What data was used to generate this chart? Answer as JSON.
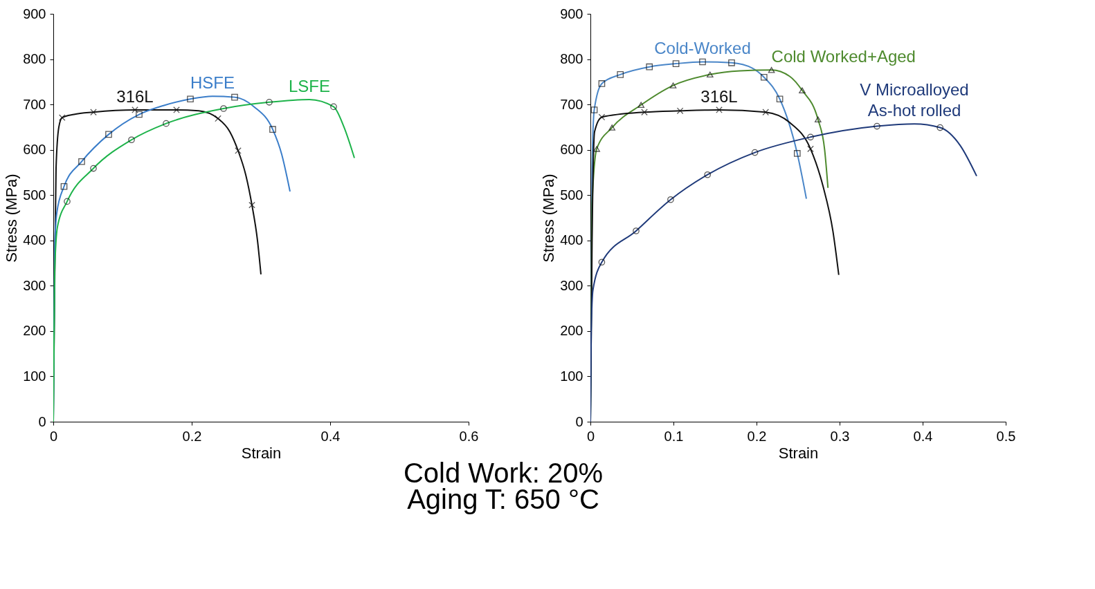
{
  "chart_data": [
    {
      "type": "line",
      "xlabel": "Strain",
      "ylabel": "Stress (MPa)",
      "xlim": [
        0,
        0.6
      ],
      "xticks": [
        0,
        0.2,
        0.4,
        0.6
      ],
      "ylim": [
        0,
        900
      ],
      "yticks": [
        0,
        100,
        200,
        300,
        400,
        500,
        600,
        700,
        800,
        900
      ],
      "grid": false,
      "series": [
        {
          "name": "316L",
          "color": "#111111",
          "x": [
            0,
            0.002,
            0.004,
            0.008,
            0.0128,
            0.03,
            0.058,
            0.118,
            0.178,
            0.21,
            0.238,
            0.255,
            0.267,
            0.278,
            0.287,
            0.295,
            0.3
          ],
          "values": [
            0,
            300,
            560,
            650,
            671,
            678,
            683,
            688,
            688,
            686,
            669,
            640,
            598,
            545,
            478,
            400,
            325
          ]
        },
        {
          "name": "HSFE",
          "color": "#3a7dc9",
          "x": [
            0,
            0.002,
            0.005,
            0.0155,
            0.041,
            0.08,
            0.124,
            0.16,
            0.198,
            0.23,
            0.262,
            0.29,
            0.317,
            0.33,
            0.342
          ],
          "values": [
            0,
            380,
            460,
            519,
            574,
            634,
            678,
            698,
            712,
            718,
            716,
            695,
            645,
            590,
            508
          ]
        },
        {
          "name": "LSFE",
          "color": "#1db34a",
          "x": [
            0,
            0.002,
            0.006,
            0.02,
            0.058,
            0.113,
            0.163,
            0.246,
            0.312,
            0.37,
            0.405,
            0.42,
            0.435
          ],
          "values": [
            0,
            330,
            430,
            486,
            559,
            622,
            658,
            691,
            705,
            711,
            695,
            650,
            582
          ]
        },
        {
          "type": "scatter",
          "color": "#111111",
          "marker": "cross",
          "x": [
            0.0128,
            0.058,
            0.118,
            0.178,
            0.238,
            0.267,
            0.287
          ],
          "values": [
            671,
            683,
            688,
            688,
            669,
            598,
            478
          ]
        },
        {
          "type": "scatter",
          "color": "#111111",
          "marker": "square",
          "x": [
            0.0155,
            0.041,
            0.08,
            0.124,
            0.198,
            0.262,
            0.317
          ],
          "values": [
            519,
            574,
            634,
            678,
            712,
            716,
            645
          ]
        },
        {
          "type": "scatter",
          "color": "#111111",
          "marker": "circle",
          "x": [
            0.02,
            0.058,
            0.113,
            0.163,
            0.246,
            0.312,
            0.405
          ],
          "values": [
            486,
            559,
            622,
            658,
            691,
            705,
            695
          ]
        }
      ]
    },
    {
      "type": "line",
      "xlabel": "Strain",
      "ylabel": "Stress (MPa)",
      "xlim": [
        0,
        0.5
      ],
      "xticks": [
        0,
        0.1,
        0.2,
        0.3,
        0.4,
        0.5
      ],
      "ylim": [
        0,
        900
      ],
      "yticks": [
        0,
        100,
        200,
        300,
        400,
        500,
        600,
        700,
        800,
        900
      ],
      "grid": false,
      "series": [
        {
          "name": "Cold-Worked",
          "color": "#4a86c8",
          "x": [
            0,
            0.002,
            0.0046,
            0.0137,
            0.036,
            0.071,
            0.103,
            0.135,
            0.17,
            0.195,
            0.209,
            0.228,
            0.249,
            0.26
          ],
          "values": [
            0,
            560,
            688,
            746,
            766,
            783,
            790,
            794,
            792,
            780,
            760,
            712,
            592,
            492
          ]
        },
        {
          "name": "Cold Worked+Aged",
          "color": "#4e8a2e",
          "x": [
            0,
            0.002,
            0.0076,
            0.026,
            0.061,
            0.0996,
            0.144,
            0.18,
            0.218,
            0.24,
            0.255,
            0.274,
            0.282,
            0.286
          ],
          "values": [
            0,
            480,
            602,
            649,
            699,
            742,
            766,
            774,
            776,
            762,
            731,
            667,
            600,
            516
          ]
        },
        {
          "name": "316L",
          "color": "#111111",
          "x": [
            0,
            0.002,
            0.005,
            0.0137,
            0.065,
            0.108,
            0.155,
            0.211,
            0.24,
            0.265,
            0.28,
            0.292,
            0.299
          ],
          "values": [
            0,
            400,
            640,
            672,
            683,
            686,
            688,
            683,
            660,
            602,
            520,
            420,
            324
          ]
        },
        {
          "name": "V Microalloyed\nAs-hot rolled",
          "color": "#1f3a7a",
          "x": [
            0,
            0.001,
            0.003,
            0.0137,
            0.055,
            0.0966,
            0.141,
            0.198,
            0.265,
            0.345,
            0.39,
            0.421,
            0.445,
            0.465
          ],
          "values": [
            0,
            200,
            290,
            352,
            421,
            490,
            545,
            594,
            628,
            652,
            657,
            649,
            610,
            542
          ]
        },
        {
          "type": "scatter",
          "color": "#111111",
          "marker": "square",
          "x": [
            0.0046,
            0.0137,
            0.036,
            0.071,
            0.103,
            0.135,
            0.17,
            0.209,
            0.228,
            0.249
          ],
          "values": [
            688,
            746,
            766,
            783,
            790,
            794,
            792,
            760,
            712,
            592
          ]
        },
        {
          "type": "scatter",
          "color": "#111111",
          "marker": "triangle",
          "x": [
            0.0076,
            0.026,
            0.061,
            0.0996,
            0.144,
            0.218,
            0.255,
            0.274
          ],
          "values": [
            602,
            649,
            699,
            742,
            766,
            776,
            731,
            667
          ]
        },
        {
          "type": "scatter",
          "color": "#111111",
          "marker": "cross",
          "x": [
            0.0137,
            0.065,
            0.108,
            0.155,
            0.211,
            0.265
          ],
          "values": [
            672,
            683,
            686,
            688,
            683,
            602
          ]
        },
        {
          "type": "scatter",
          "color": "#111111",
          "marker": "circle",
          "x": [
            0.0137,
            0.055,
            0.0966,
            0.141,
            0.198,
            0.265,
            0.345,
            0.421
          ],
          "values": [
            352,
            421,
            490,
            545,
            594,
            628,
            652,
            649
          ]
        }
      ],
      "annotations": [
        "Cold Work: 20%",
        "Aging T: 650 °C"
      ]
    }
  ]
}
